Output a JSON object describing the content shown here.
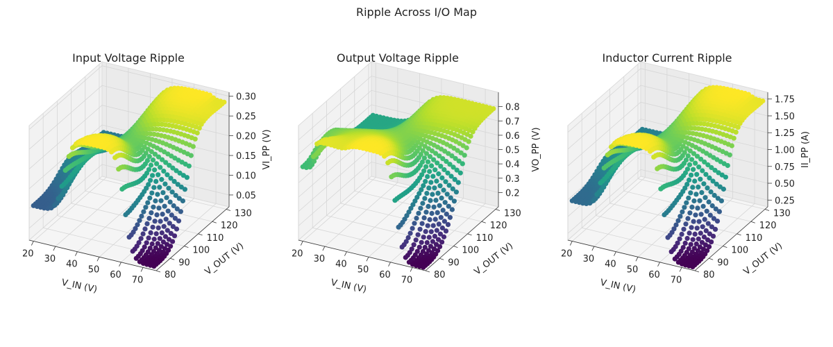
{
  "suptitle": "Ripple Across I/O Map",
  "chart_data": [
    {
      "type": "scatter",
      "title": "Input Voltage Ripple",
      "xlabel": "V_IN (V)",
      "ylabel": "V_OUT (V)",
      "zlabel": "VI_PP (V)",
      "xlim": [
        18,
        76
      ],
      "ylim": [
        80,
        132
      ],
      "zlim": [
        0.02,
        0.31
      ],
      "xticks": [
        "20",
        "30",
        "40",
        "50",
        "60",
        "70"
      ],
      "yticks": [
        "80",
        "90",
        "100",
        "110",
        "120",
        "130"
      ],
      "zticks": [
        "0.05",
        "0.10",
        "0.15",
        "0.20",
        "0.25",
        "0.30"
      ],
      "colormap": "viridis",
      "surface_samples": [
        {
          "vin": 20,
          "vout": 80,
          "z": 0.11
        },
        {
          "vin": 48,
          "vout": 80,
          "z": 0.3
        },
        {
          "vin": 75,
          "vout": 80,
          "z": 0.03
        },
        {
          "vin": 20,
          "vout": 130,
          "z": 0.14
        },
        {
          "vin": 65,
          "vout": 130,
          "z": 0.3
        },
        {
          "vin": 75,
          "vout": 130,
          "z": 0.29
        }
      ]
    },
    {
      "type": "scatter",
      "title": "Output Voltage Ripple",
      "xlabel": "V_IN (V)",
      "ylabel": "V_OUT (V)",
      "zlabel": "VO_PP (V)",
      "xlim": [
        18,
        76
      ],
      "ylim": [
        80,
        132
      ],
      "zlim": [
        0.1,
        0.9
      ],
      "xticks": [
        "20",
        "30",
        "40",
        "50",
        "60",
        "70"
      ],
      "yticks": [
        "80",
        "90",
        "100",
        "110",
        "120",
        "130"
      ],
      "zticks": [
        "0.2",
        "0.3",
        "0.4",
        "0.5",
        "0.6",
        "0.7",
        "0.8"
      ],
      "colormap": "viridis",
      "surface_samples": [
        {
          "vin": 20,
          "vout": 80,
          "z": 0.62
        },
        {
          "vin": 30,
          "vout": 80,
          "z": 0.82
        },
        {
          "vin": 50,
          "vout": 80,
          "z": 0.85
        },
        {
          "vin": 75,
          "vout": 80,
          "z": 0.12
        },
        {
          "vin": 20,
          "vout": 130,
          "z": 0.55
        },
        {
          "vin": 65,
          "vout": 130,
          "z": 0.8
        }
      ]
    },
    {
      "type": "scatter",
      "title": "Inductor Current Ripple",
      "xlabel": "V_IN (V)",
      "ylabel": "V_OUT (V)",
      "zlabel": "II_PP (A)",
      "xlim": [
        18,
        76
      ],
      "ylim": [
        80,
        132
      ],
      "zlim": [
        0.15,
        1.85
      ],
      "xticks": [
        "20",
        "30",
        "40",
        "50",
        "60",
        "70"
      ],
      "yticks": [
        "80",
        "90",
        "100",
        "110",
        "120",
        "130"
      ],
      "zticks": [
        "0.25",
        "0.50",
        "0.75",
        "1.00",
        "1.25",
        "1.50",
        "1.75"
      ],
      "colormap": "viridis",
      "surface_samples": [
        {
          "vin": 20,
          "vout": 80,
          "z": 0.75
        },
        {
          "vin": 48,
          "vout": 80,
          "z": 1.8
        },
        {
          "vin": 75,
          "vout": 80,
          "z": 0.2
        },
        {
          "vin": 20,
          "vout": 130,
          "z": 0.9
        },
        {
          "vin": 65,
          "vout": 130,
          "z": 1.8
        },
        {
          "vin": 75,
          "vout": 130,
          "z": 1.75
        }
      ]
    }
  ]
}
